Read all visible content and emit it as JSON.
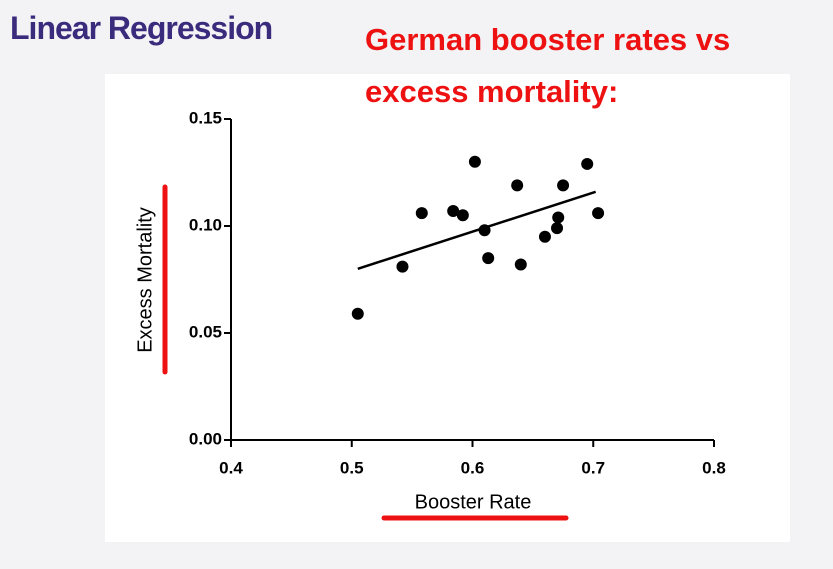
{
  "header": {
    "title": "Linear Regression"
  },
  "chart_data": {
    "type": "scatter",
    "title": "German booster rates vs excess mortality:",
    "x_label": "Booster Rate",
    "y_label": "Excess Mortality",
    "color": "#000000",
    "x": [
      0.505,
      0.542,
      0.558,
      0.584,
      0.592,
      0.602,
      0.61,
      0.613,
      0.637,
      0.64,
      0.66,
      0.671,
      0.67,
      0.675,
      0.695,
      0.704
    ],
    "values": [
      0.059,
      0.081,
      0.106,
      0.107,
      0.105,
      0.13,
      0.098,
      0.085,
      0.119,
      0.082,
      0.095,
      0.104,
      0.099,
      0.119,
      0.129,
      0.106
    ],
    "fit_line": {
      "x": [
        0.505,
        0.702
      ],
      "y": [
        0.08,
        0.116
      ]
    },
    "xlim": [
      0.4,
      0.8
    ],
    "xticks": [
      0.4,
      0.5,
      0.6,
      0.7,
      0.8
    ],
    "ylim": [
      0,
      0.15
    ],
    "yticks": [
      {
        "value": 0,
        "label": "0.00"
      },
      0.05,
      {
        "value": 0.1,
        "label": "0.10"
      },
      0.15
    ]
  }
}
